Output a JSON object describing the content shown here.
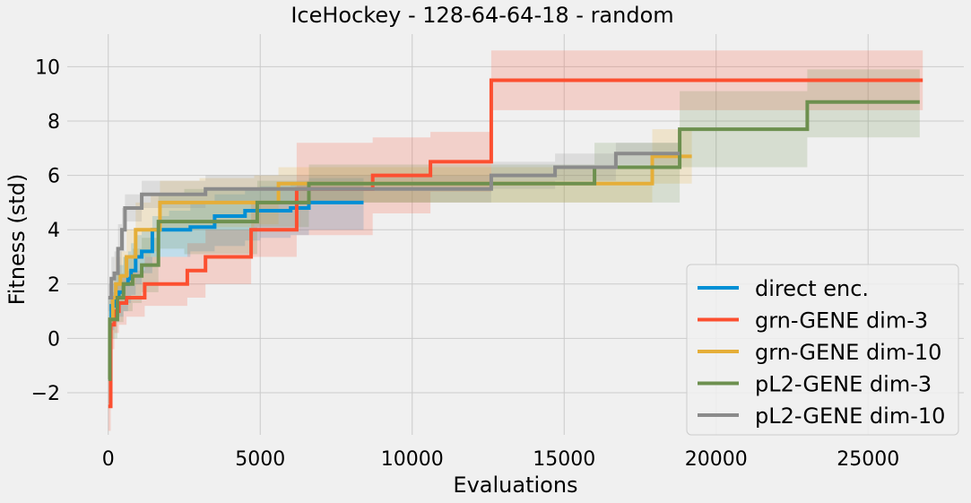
{
  "chart_data": {
    "type": "line",
    "title": "IceHockey - 128-64-64-18 - random",
    "xlabel": "Evaluations",
    "ylabel": "Fitness (std)",
    "xlim": [
      -1350,
      28150
    ],
    "ylim": [
      -3.55,
      11.2
    ],
    "xticks": [
      0,
      5000,
      10000,
      15000,
      20000,
      25000
    ],
    "xtick_labels": [
      "0",
      "5000",
      "10000",
      "15000",
      "20000",
      "25000"
    ],
    "yticks": [
      -2,
      0,
      2,
      4,
      6,
      8,
      10
    ],
    "ytick_labels": [
      "−2",
      "0",
      "2",
      "4",
      "6",
      "8",
      "10"
    ],
    "grid": true,
    "legend_position": "lower-right",
    "series": [
      {
        "name": "direct enc.",
        "color": "#008fd5",
        "step": true,
        "x": [
          0,
          100,
          200,
          350,
          500,
          650,
          750,
          900,
          1100,
          1450,
          2000,
          2700,
          3500,
          4500,
          5000,
          6000,
          6600,
          8400
        ],
        "y": [
          0.7,
          1.2,
          1.5,
          1.7,
          2.0,
          2.2,
          2.5,
          3.0,
          3.2,
          4.0,
          4.0,
          4.1,
          4.5,
          4.7,
          4.7,
          4.8,
          5.0,
          5.0
        ],
        "upper": [
          1.5,
          2.0,
          2.4,
          2.7,
          3.0,
          3.2,
          3.5,
          3.8,
          4.0,
          4.5,
          4.7,
          5.0,
          5.3,
          5.5,
          5.6,
          5.7,
          5.9,
          5.9
        ],
        "lower": [
          0.0,
          0.3,
          0.6,
          0.8,
          1.0,
          1.3,
          1.6,
          2.0,
          2.4,
          3.0,
          3.0,
          3.2,
          3.4,
          3.6,
          3.7,
          3.8,
          4.0,
          4.0
        ]
      },
      {
        "name": "grn-GENE dim-3",
        "color": "#fc4f30",
        "step": true,
        "x": [
          0,
          80,
          200,
          350,
          600,
          1200,
          2600,
          3200,
          4700,
          6200,
          8700,
          10600,
          12600,
          26800
        ],
        "y": [
          -2.5,
          0.5,
          1.0,
          1.3,
          1.5,
          2.0,
          2.5,
          3.0,
          4.0,
          5.5,
          6.0,
          6.5,
          9.5,
          9.5
        ],
        "upper": [
          -1.5,
          1.4,
          2.0,
          2.3,
          2.5,
          3.0,
          3.5,
          4.0,
          5.0,
          7.2,
          7.4,
          7.6,
          10.6,
          10.6
        ],
        "lower": [
          -3.4,
          -0.4,
          0.2,
          0.5,
          0.8,
          1.2,
          1.5,
          2.0,
          3.0,
          3.8,
          4.6,
          5.4,
          8.4,
          8.4
        ]
      },
      {
        "name": "grn-GENE dim-10",
        "color": "#e5ae38",
        "step": true,
        "x": [
          0,
          150,
          250,
          400,
          600,
          900,
          1400,
          1700,
          3000,
          4800,
          5600,
          6500,
          17900,
          18800,
          19200
        ],
        "y": [
          0.7,
          1.5,
          2.0,
          2.3,
          3.0,
          4.0,
          4.0,
          5.0,
          5.0,
          5.0,
          5.7,
          5.7,
          6.7,
          6.7,
          6.7
        ],
        "upper": [
          1.5,
          2.4,
          3.0,
          3.2,
          4.0,
          5.0,
          5.3,
          5.8,
          5.9,
          6.0,
          6.3,
          6.3,
          7.7,
          7.7,
          7.7
        ],
        "lower": [
          0.0,
          0.5,
          1.0,
          1.3,
          2.0,
          3.0,
          3.2,
          4.0,
          4.1,
          4.2,
          5.0,
          5.0,
          5.7,
          5.7,
          5.7
        ]
      },
      {
        "name": "pL2-GENE dim-3",
        "color": "#6d904f",
        "step": true,
        "x": [
          0,
          50,
          150,
          300,
          500,
          800,
          1100,
          1650,
          2500,
          4900,
          6600,
          16000,
          18800,
          23000,
          26700
        ],
        "y": [
          -1.5,
          0.7,
          0.7,
          1.5,
          2.0,
          2.3,
          2.7,
          4.3,
          4.3,
          5.0,
          5.7,
          6.3,
          7.7,
          8.7,
          8.7
        ],
        "upper": [
          -0.8,
          1.5,
          1.7,
          2.4,
          3.0,
          3.3,
          3.7,
          5.3,
          5.5,
          5.8,
          6.4,
          7.2,
          9.1,
          9.9,
          9.9
        ],
        "lower": [
          -2.4,
          0.0,
          0.0,
          0.6,
          1.0,
          1.3,
          1.7,
          3.3,
          3.1,
          4.1,
          5.0,
          5.0,
          6.3,
          7.4,
          7.4
        ]
      },
      {
        "name": "pL2-GENE dim-10",
        "color": "#8b8b8b",
        "step": true,
        "x": [
          0,
          100,
          200,
          320,
          450,
          550,
          1100,
          3200,
          12600,
          14700,
          16700,
          18800
        ],
        "y": [
          1.5,
          2.2,
          2.4,
          3.3,
          4.0,
          4.8,
          5.3,
          5.5,
          6.0,
          6.3,
          6.8,
          6.8
        ],
        "upper": [
          2.0,
          3.0,
          3.2,
          4.2,
          4.8,
          5.3,
          5.8,
          6.0,
          6.5,
          6.8,
          7.2,
          7.2
        ],
        "lower": [
          1.0,
          1.4,
          1.6,
          2.4,
          3.2,
          4.3,
          4.8,
          5.0,
          5.5,
          5.8,
          6.4,
          6.4
        ]
      }
    ]
  }
}
